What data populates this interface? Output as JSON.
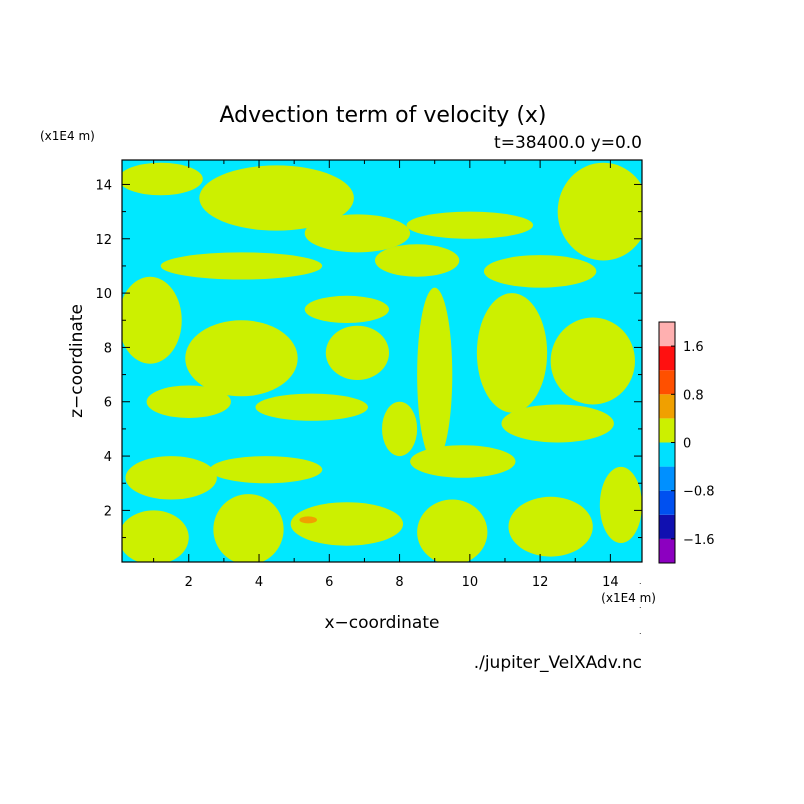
{
  "chart_data": {
    "type": "heatmap",
    "title": "Advection term of velocity (x)",
    "subtitle": "t=38400.0 y=0.0",
    "xlabel": "x−coordinate",
    "ylabel": "z−coordinate",
    "x_unit": "(x1E4 m)",
    "y_unit": "(x1E4 m)",
    "xlim": [
      0.1,
      14.9
    ],
    "ylim": [
      0.1,
      14.9
    ],
    "x_ticks": [
      2,
      4,
      6,
      8,
      10,
      12,
      14
    ],
    "y_ticks": [
      2,
      4,
      6,
      8,
      10,
      12,
      14
    ],
    "colorbar": {
      "levels": [
        -2.0,
        -1.6,
        -1.2,
        -0.8,
        -0.4,
        0,
        0.4,
        0.8,
        1.2,
        1.6,
        2.0
      ],
      "colors": [
        "#8c00c0",
        "#1010b0",
        "#0050f0",
        "#0090ff",
        "#00e0ff",
        "#ccf000",
        "#f0a000",
        "#ff5000",
        "#ff1010",
        "#ffb0b0"
      ],
      "tick_labels": [
        "−1.6",
        "−0.8",
        "0",
        "0.8",
        "1.6"
      ],
      "tick_values": [
        -1.6,
        -0.8,
        0,
        0.8,
        1.6
      ]
    },
    "background_color": "#00e8ff",
    "positive_color": "#ccf000",
    "hotspot_color": "#f0a000",
    "regions": [
      {
        "level": "0 to 0.4",
        "cx": 1.2,
        "cy": 14.2,
        "rx": 1.2,
        "ry": 0.6
      },
      {
        "level": "0 to 0.4",
        "cx": 4.5,
        "cy": 13.5,
        "rx": 2.2,
        "ry": 1.2
      },
      {
        "level": "0 to 0.4",
        "cx": 6.8,
        "cy": 12.2,
        "rx": 1.5,
        "ry": 0.7
      },
      {
        "level": "0 to 0.4",
        "cx": 10.0,
        "cy": 12.5,
        "rx": 1.8,
        "ry": 0.5
      },
      {
        "level": "0 to 0.4",
        "cx": 13.8,
        "cy": 13.0,
        "rx": 1.3,
        "ry": 1.8
      },
      {
        "level": "0 to 0.4",
        "cx": 3.5,
        "cy": 11.0,
        "rx": 2.3,
        "ry": 0.5
      },
      {
        "level": "0 to 0.4",
        "cx": 8.5,
        "cy": 11.2,
        "rx": 1.2,
        "ry": 0.6
      },
      {
        "level": "0 to 0.4",
        "cx": 12.0,
        "cy": 10.8,
        "rx": 1.6,
        "ry": 0.6
      },
      {
        "level": "0 to 0.4",
        "cx": 0.9,
        "cy": 9.0,
        "rx": 0.9,
        "ry": 1.6
      },
      {
        "level": "0 to 0.4",
        "cx": 3.5,
        "cy": 7.6,
        "rx": 1.6,
        "ry": 1.4
      },
      {
        "level": "0 to 0.4",
        "cx": 6.5,
        "cy": 9.4,
        "rx": 1.2,
        "ry": 0.5
      },
      {
        "level": "0 to 0.4",
        "cx": 6.8,
        "cy": 7.8,
        "rx": 0.9,
        "ry": 1.0
      },
      {
        "level": "0 to 0.4",
        "cx": 9.0,
        "cy": 7.0,
        "rx": 0.5,
        "ry": 3.2
      },
      {
        "level": "0 to 0.4",
        "cx": 11.2,
        "cy": 7.8,
        "rx": 1.0,
        "ry": 2.2
      },
      {
        "level": "0 to 0.4",
        "cx": 13.5,
        "cy": 7.5,
        "rx": 1.2,
        "ry": 1.6
      },
      {
        "level": "0 to 0.4",
        "cx": 2.0,
        "cy": 6.0,
        "rx": 1.2,
        "ry": 0.6
      },
      {
        "level": "0 to 0.4",
        "cx": 5.5,
        "cy": 5.8,
        "rx": 1.6,
        "ry": 0.5
      },
      {
        "level": "0 to 0.4",
        "cx": 8.0,
        "cy": 5.0,
        "rx": 0.5,
        "ry": 1.0
      },
      {
        "level": "0 to 0.4",
        "cx": 12.5,
        "cy": 5.2,
        "rx": 1.6,
        "ry": 0.7
      },
      {
        "level": "0 to 0.4",
        "cx": 1.5,
        "cy": 3.2,
        "rx": 1.3,
        "ry": 0.8
      },
      {
        "level": "0 to 0.4",
        "cx": 4.2,
        "cy": 3.5,
        "rx": 1.6,
        "ry": 0.5
      },
      {
        "level": "0 to 0.4",
        "cx": 9.8,
        "cy": 3.8,
        "rx": 1.5,
        "ry": 0.6
      },
      {
        "level": "0 to 0.4",
        "cx": 1.0,
        "cy": 1.0,
        "rx": 1.0,
        "ry": 1.0
      },
      {
        "level": "0 to 0.4",
        "cx": 3.7,
        "cy": 1.3,
        "rx": 1.0,
        "ry": 1.3
      },
      {
        "level": "0 to 0.4",
        "cx": 6.5,
        "cy": 1.5,
        "rx": 1.6,
        "ry": 0.8
      },
      {
        "level": "0 to 0.4",
        "cx": 9.5,
        "cy": 1.2,
        "rx": 1.0,
        "ry": 1.2
      },
      {
        "level": "0 to 0.4",
        "cx": 12.3,
        "cy": 1.4,
        "rx": 1.2,
        "ry": 1.1
      },
      {
        "level": "0 to 0.4",
        "cx": 14.3,
        "cy": 2.2,
        "rx": 0.6,
        "ry": 1.4
      },
      {
        "level": "0.4 to 0.8",
        "cx": 5.4,
        "cy": 1.65,
        "rx": 0.25,
        "ry": 0.13
      }
    ],
    "source_label": "./jupiter_VelXAdv.nc"
  }
}
